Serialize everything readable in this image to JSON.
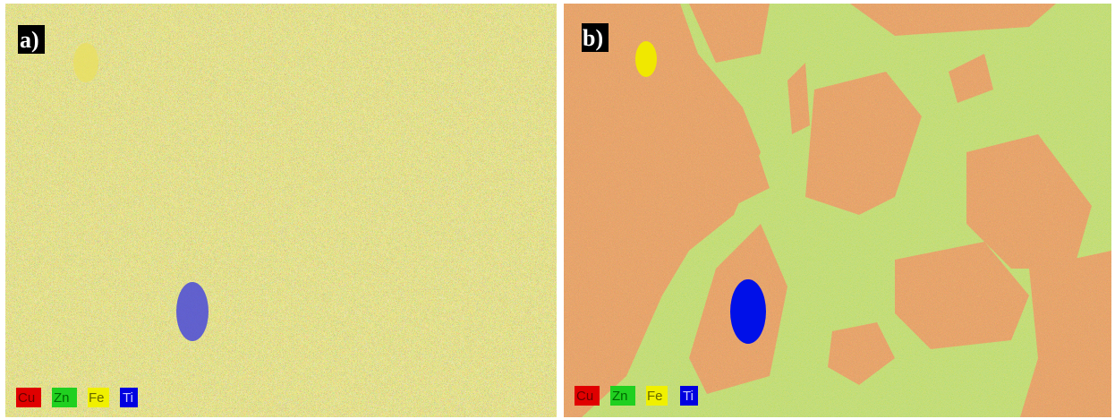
{
  "panels": [
    {
      "label": "a)",
      "legend": [
        "Cu",
        "Zn",
        "Fe",
        "Ti"
      ]
    },
    {
      "label": "b)",
      "legend": [
        "Cu",
        "Zn",
        "Fe",
        "Ti"
      ]
    }
  ]
}
